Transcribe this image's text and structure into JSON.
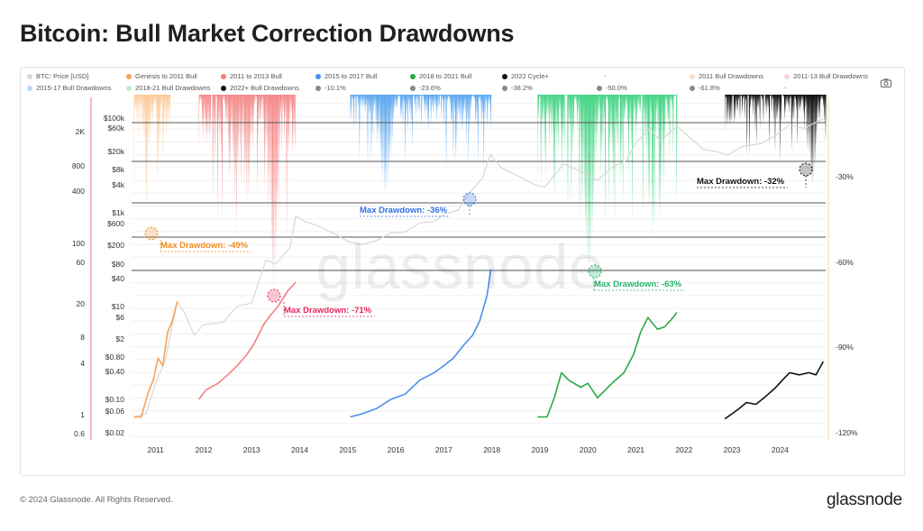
{
  "title": "Bitcoin: Bull Market Correction Drawdowns",
  "footer": {
    "copyright": "© 2024 Glassnode. All Rights Reserved.",
    "logo": "glassnode",
    "watermark": "glassnode"
  },
  "toolbar": {
    "camera_icon": "camera-icon"
  },
  "legend": [
    {
      "label": "BTC: Price [USD]",
      "color": "#d8d8d8"
    },
    {
      "label": "Genesis to 2011 Bull",
      "color": "#f5a35a"
    },
    {
      "label": "2011 to 2013 Bull",
      "color": "#f47f7f"
    },
    {
      "label": "2015 to 2017 Bull",
      "color": "#4a90e8"
    },
    {
      "label": "2018 to 2021 Bull",
      "color": "#2aa84a"
    },
    {
      "label": "2022 Cycle+",
      "color": "#111111"
    },
    {
      "label": "-",
      "color": ""
    },
    {
      "label": "2011 Bull Drawdowns",
      "color": "#fbe0c8"
    },
    {
      "label": "2011-13 Bull Drawdowns",
      "color": "#fbd3d3"
    },
    {
      "label": "2015-17 Bull Drawdowns",
      "color": "#bcd8f6"
    },
    {
      "label": "2018-21 Bull Drawdowns",
      "color": "#bfeccd"
    },
    {
      "label": "2022+ Bull Drawdowns",
      "color": "#111111"
    },
    {
      "label": "-10.1%",
      "color": "#888888"
    },
    {
      "label": "-23.6%",
      "color": "#888888"
    },
    {
      "label": "-38.2%",
      "color": "#888888"
    },
    {
      "label": "-50.0%",
      "color": "#888888"
    },
    {
      "label": "-61.8%",
      "color": "#888888"
    },
    {
      "label": "-",
      "color": ""
    }
  ],
  "chart_data": {
    "type": "line",
    "title": "Bitcoin: Bull Market Correction Drawdowns",
    "x_ticks": [
      "2011",
      "2012",
      "2013",
      "2014",
      "2015",
      "2016",
      "2017",
      "2018",
      "2019",
      "2020",
      "2021",
      "2022",
      "2023",
      "2024"
    ],
    "x_range": [
      2010.5,
      2024.95
    ],
    "left_axis_inner_ticks": [
      "$100k",
      "$60k",
      "$20k",
      "$8k",
      "$4k",
      "$1k",
      "$600",
      "$200",
      "$80",
      "$40",
      "$10",
      "$6",
      "$2",
      "$0.80",
      "$0.40",
      "$0.10",
      "$0.06",
      "$0.02"
    ],
    "left_axis_outer_ticks": [
      "2K",
      "800",
      "400",
      "100",
      "60",
      "20",
      "8",
      "4",
      "1",
      "0.6"
    ],
    "right_axis_ticks": [
      "-30%",
      "-60%",
      "-90%",
      "-120%"
    ],
    "fib_levels": [
      -10.1,
      -23.6,
      -38.2,
      -50.0,
      -61.8
    ],
    "series": [
      {
        "name": "BTC: Price [USD]",
        "color": "#d8d8d8",
        "points": [
          [
            2010.55,
            0.06
          ],
          [
            2010.8,
            0.07
          ],
          [
            2011.0,
            0.3
          ],
          [
            2011.2,
            0.9
          ],
          [
            2011.45,
            15
          ],
          [
            2011.6,
            9
          ],
          [
            2011.8,
            3
          ],
          [
            2012.0,
            5
          ],
          [
            2012.4,
            5.5
          ],
          [
            2012.7,
            12
          ],
          [
            2013.0,
            14
          ],
          [
            2013.3,
            110
          ],
          [
            2013.5,
            90
          ],
          [
            2013.8,
            200
          ],
          [
            2013.92,
            900
          ],
          [
            2014.1,
            700
          ],
          [
            2014.4,
            550
          ],
          [
            2014.7,
            400
          ],
          [
            2015.0,
            270
          ],
          [
            2015.3,
            230
          ],
          [
            2015.6,
            280
          ],
          [
            2015.9,
            400
          ],
          [
            2016.2,
            420
          ],
          [
            2016.5,
            650
          ],
          [
            2016.8,
            700
          ],
          [
            2017.0,
            980
          ],
          [
            2017.3,
            1200
          ],
          [
            2017.5,
            2500
          ],
          [
            2017.8,
            5500
          ],
          [
            2017.97,
            17000
          ],
          [
            2018.2,
            9000
          ],
          [
            2018.5,
            6500
          ],
          [
            2018.9,
            4000
          ],
          [
            2019.1,
            3600
          ],
          [
            2019.5,
            11000
          ],
          [
            2019.9,
            7200
          ],
          [
            2020.2,
            5000
          ],
          [
            2020.5,
            9200
          ],
          [
            2020.8,
            13000
          ],
          [
            2021.0,
            30000
          ],
          [
            2021.3,
            60000
          ],
          [
            2021.5,
            33000
          ],
          [
            2021.86,
            66000
          ],
          [
            2022.1,
            40000
          ],
          [
            2022.4,
            22000
          ],
          [
            2022.7,
            19500
          ],
          [
            2022.9,
            16500
          ],
          [
            2023.2,
            25000
          ],
          [
            2023.6,
            29000
          ],
          [
            2023.9,
            42000
          ],
          [
            2024.2,
            70000
          ],
          [
            2024.5,
            60000
          ],
          [
            2024.9,
            95000
          ]
        ]
      },
      {
        "name": "Genesis to 2011 Bull",
        "color": "#f5a35a",
        "points": [
          [
            2010.55,
            0.06
          ],
          [
            2010.7,
            0.06
          ],
          [
            2010.85,
            0.2
          ],
          [
            2010.95,
            0.35
          ],
          [
            2011.05,
            1.0
          ],
          [
            2011.15,
            0.7
          ],
          [
            2011.25,
            3.5
          ],
          [
            2011.35,
            6.0
          ],
          [
            2011.45,
            15
          ]
        ]
      },
      {
        "name": "2011 to 2013 Bull",
        "color": "#f47f7f",
        "points": [
          [
            2011.9,
            0.14
          ],
          [
            2012.05,
            0.22
          ],
          [
            2012.3,
            0.3
          ],
          [
            2012.5,
            0.45
          ],
          [
            2012.7,
            0.7
          ],
          [
            2012.9,
            1.2
          ],
          [
            2013.05,
            2.0
          ],
          [
            2013.25,
            5
          ],
          [
            2013.4,
            8
          ],
          [
            2013.55,
            12
          ],
          [
            2013.75,
            25
          ],
          [
            2013.92,
            38
          ]
        ]
      },
      {
        "name": "2015 to 2017 Bull",
        "color": "#4a90e8",
        "points": [
          [
            2015.05,
            0.06
          ],
          [
            2015.3,
            0.07
          ],
          [
            2015.6,
            0.09
          ],
          [
            2015.9,
            0.14
          ],
          [
            2016.2,
            0.18
          ],
          [
            2016.5,
            0.35
          ],
          [
            2016.8,
            0.5
          ],
          [
            2017.0,
            0.7
          ],
          [
            2017.2,
            1.0
          ],
          [
            2017.4,
            1.8
          ],
          [
            2017.6,
            3.0
          ],
          [
            2017.75,
            6
          ],
          [
            2017.9,
            20
          ],
          [
            2017.98,
            70
          ]
        ]
      },
      {
        "name": "2018 to 2021 Bull",
        "color": "#2aa84a",
        "points": [
          [
            2018.95,
            0.06
          ],
          [
            2019.15,
            0.06
          ],
          [
            2019.3,
            0.15
          ],
          [
            2019.45,
            0.5
          ],
          [
            2019.6,
            0.35
          ],
          [
            2019.85,
            0.25
          ],
          [
            2020.0,
            0.3
          ],
          [
            2020.2,
            0.15
          ],
          [
            2020.5,
            0.3
          ],
          [
            2020.75,
            0.5
          ],
          [
            2020.95,
            1.2
          ],
          [
            2021.1,
            3.5
          ],
          [
            2021.25,
            7
          ],
          [
            2021.45,
            4
          ],
          [
            2021.6,
            4.5
          ],
          [
            2021.8,
            7.5
          ],
          [
            2021.85,
            9
          ]
        ]
      },
      {
        "name": "2022 Cycle+",
        "color": "#111111",
        "points": [
          [
            2022.85,
            0.055
          ],
          [
            2023.0,
            0.07
          ],
          [
            2023.15,
            0.09
          ],
          [
            2023.3,
            0.12
          ],
          [
            2023.5,
            0.11
          ],
          [
            2023.7,
            0.16
          ],
          [
            2023.9,
            0.24
          ],
          [
            2024.05,
            0.35
          ],
          [
            2024.2,
            0.5
          ],
          [
            2024.4,
            0.45
          ],
          [
            2024.6,
            0.5
          ],
          [
            2024.75,
            0.45
          ],
          [
            2024.9,
            0.85
          ]
        ]
      }
    ],
    "drawdowns": [
      {
        "name": "2011 Bull Drawdowns",
        "color": "#fbc48f",
        "start": 2010.55,
        "end": 2011.3,
        "max": -49
      },
      {
        "name": "2011-13 Bull Drawdowns",
        "color": "#f47f7f",
        "start": 2011.9,
        "end": 2013.9,
        "max": -71
      },
      {
        "name": "2015-17 Bull Drawdowns",
        "color": "#4a9ef0",
        "start": 2015.05,
        "end": 2017.98,
        "max": -36
      },
      {
        "name": "2018-21 Bull Drawdowns",
        "color": "#33d07a",
        "start": 2018.95,
        "end": 2021.85,
        "max": -63
      },
      {
        "name": "2022+ Bull Drawdowns",
        "color": "#111111",
        "start": 2022.85,
        "end": 2024.95,
        "max": -32
      }
    ],
    "annotations": [
      {
        "text": "Max Drawdown: -49%",
        "color": "#f08a1a",
        "x": 2010.85,
        "y": -49
      },
      {
        "text": "Max Drawdown: -71%",
        "color": "#e8245a",
        "x": 2013.45,
        "y": -71
      },
      {
        "text": "Max Drawdown: -36%",
        "color": "#2f6fe0",
        "x": 2017.6,
        "y": -36
      },
      {
        "text": "Max Drawdown: -63%",
        "color": "#22b36a",
        "x": 2020.2,
        "y": -63
      },
      {
        "text": "Max Drawdown: -32%",
        "color": "#111111",
        "x": 2024.55,
        "y": -32
      }
    ],
    "ylim_price_log": [
      0.02,
      300000
    ],
    "ylim_drawdown": [
      -120,
      0
    ]
  }
}
